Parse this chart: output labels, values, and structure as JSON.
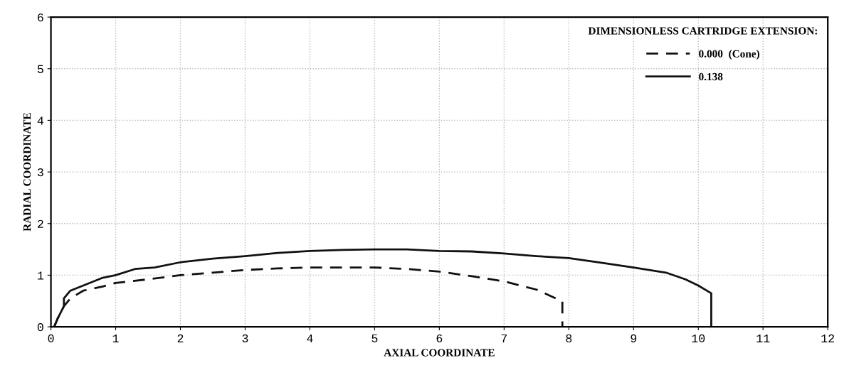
{
  "chart_data": {
    "type": "line",
    "xlabel": "AXIAL COORDINATE",
    "ylabel": "RADIAL COORDINATE",
    "legend_title": "DIMENSIONLESS CARTRIDGE EXTENSION:",
    "legend": "top right",
    "grid": true,
    "marker": "none",
    "xlim": [
      0,
      12
    ],
    "ylim": [
      0,
      6
    ],
    "xticks": [
      0,
      1,
      2,
      3,
      4,
      5,
      6,
      7,
      8,
      9,
      10,
      11,
      12
    ],
    "yticks": [
      0,
      1,
      2,
      3,
      4,
      5,
      6
    ],
    "series": [
      {
        "name": "0.000  (Cone)",
        "color": "#111111",
        "line_style": "dashed",
        "x": [
          0.05,
          0.1,
          0.2,
          0.3,
          0.5,
          0.8,
          1.0,
          1.5,
          2.0,
          2.5,
          3.0,
          3.5,
          4.0,
          5.0,
          5.5,
          6.0,
          6.5,
          7.0,
          7.5,
          7.8,
          7.9,
          7.9
        ],
        "values": [
          0,
          0.15,
          0.4,
          0.55,
          0.7,
          0.78,
          0.85,
          0.92,
          1.0,
          1.05,
          1.1,
          1.13,
          1.15,
          1.15,
          1.12,
          1.07,
          0.98,
          0.88,
          0.72,
          0.55,
          0.5,
          0
        ]
      },
      {
        "name": "0.138",
        "color": "#111111",
        "line_style": "solid",
        "x": [
          0.05,
          0.1,
          0.2,
          0.2,
          0.3,
          0.5,
          0.8,
          1.0,
          1.3,
          1.6,
          2.0,
          2.5,
          3.0,
          3.5,
          4.0,
          4.5,
          5.0,
          5.5,
          6.0,
          6.5,
          7.0,
          7.5,
          8.0,
          8.5,
          9.0,
          9.5,
          9.8,
          10.0,
          10.2,
          10.2
        ],
        "values": [
          0,
          0.15,
          0.4,
          0.55,
          0.7,
          0.8,
          0.95,
          1.0,
          1.12,
          1.15,
          1.25,
          1.32,
          1.37,
          1.43,
          1.47,
          1.49,
          1.5,
          1.5,
          1.47,
          1.46,
          1.42,
          1.37,
          1.33,
          1.24,
          1.15,
          1.05,
          0.92,
          0.8,
          0.65,
          0
        ]
      }
    ]
  }
}
